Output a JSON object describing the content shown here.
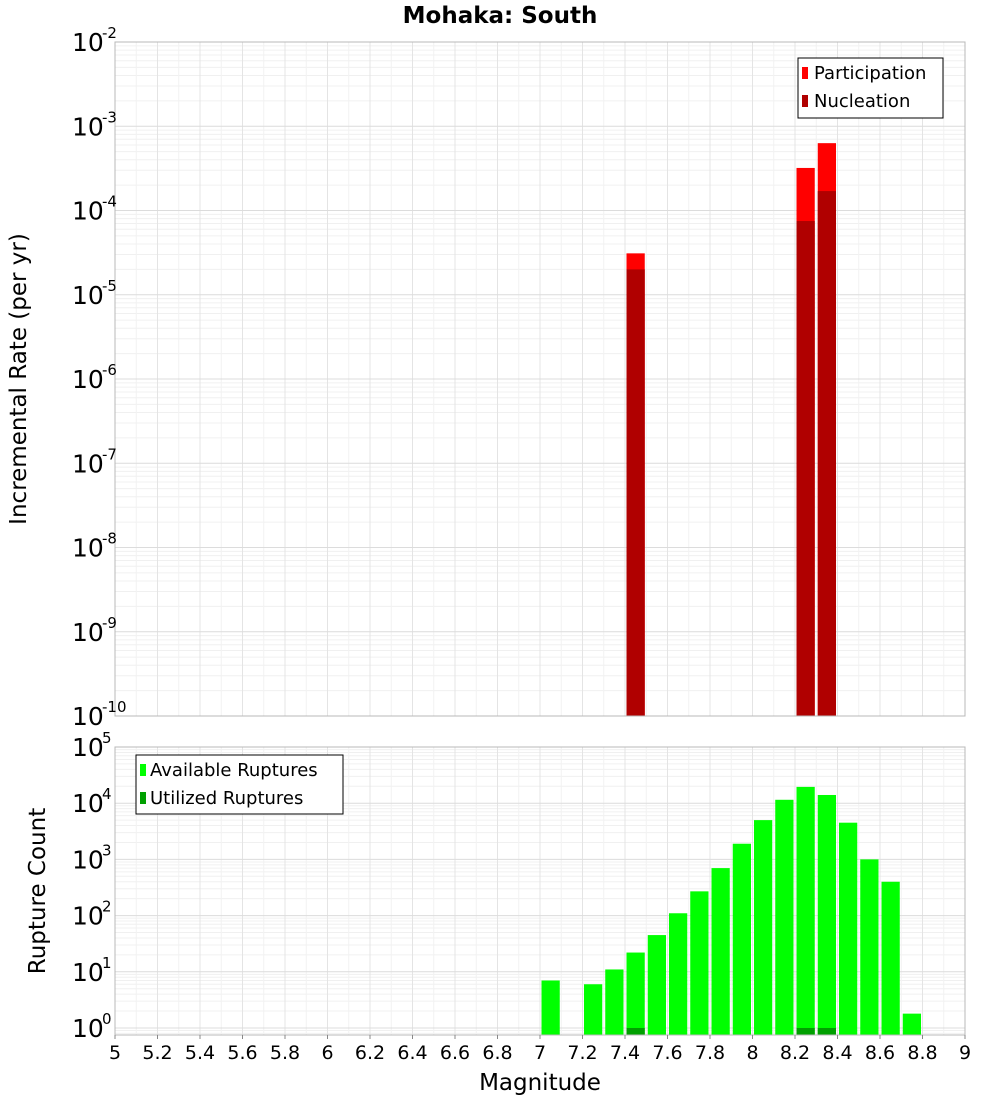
{
  "title": "Mohaka: South",
  "chart_data": [
    {
      "type": "bar",
      "panel": "top",
      "ylabel": "Incremental Rate (per yr)",
      "yscale": "log",
      "ylim": [
        1e-10,
        0.01
      ],
      "y_tick_exponents": [
        "-10",
        "-9",
        "-8",
        "-7",
        "-6",
        "-5",
        "-4",
        "-3",
        "-2"
      ],
      "legend": {
        "placement": "top-right",
        "entries": [
          "Participation",
          "Nucleation"
        ]
      },
      "series": [
        {
          "name": "Participation",
          "color": "#ff0000",
          "x": [
            7.45,
            8.25,
            8.35
          ],
          "values": [
            3.1e-05,
            0.00032,
            0.00063
          ]
        },
        {
          "name": "Nucleation",
          "color": "#b00000",
          "x": [
            7.45,
            8.25,
            8.35
          ],
          "values": [
            2e-05,
            7.5e-05,
            0.00017
          ]
        }
      ]
    },
    {
      "type": "bar",
      "panel": "bottom",
      "xlabel": "Magnitude",
      "ylabel": "Rupture Count",
      "yscale": "log",
      "ylim": [
        0.75,
        100000.0
      ],
      "xlim": [
        5,
        9
      ],
      "x_ticks": [
        "5",
        "5.2",
        "5.4",
        "5.6",
        "5.8",
        "6",
        "6.2",
        "6.4",
        "6.6",
        "6.8",
        "7",
        "7.2",
        "7.4",
        "7.6",
        "7.8",
        "8",
        "8.2",
        "8.4",
        "8.6",
        "8.8",
        "9"
      ],
      "y_tick_exponents": [
        "0",
        "1",
        "2",
        "3",
        "4",
        "5"
      ],
      "legend": {
        "placement": "top-left",
        "entries": [
          "Available Ruptures",
          "Utilized Ruptures"
        ]
      },
      "series": [
        {
          "name": "Available Ruptures",
          "color": "#00ff00",
          "x": [
            7.05,
            7.25,
            7.35,
            7.45,
            7.55,
            7.65,
            7.75,
            7.85,
            7.95,
            8.05,
            8.15,
            8.25,
            8.35,
            8.45,
            8.55,
            8.65,
            8.75
          ],
          "values": [
            7,
            6,
            11,
            22,
            45,
            110,
            270,
            700,
            1900,
            5000,
            11500,
            19500,
            14000,
            4500,
            1000,
            400,
            1.8
          ]
        },
        {
          "name": "Utilized Ruptures",
          "color": "#00a000",
          "x": [
            7.45,
            8.25,
            8.35
          ],
          "values": [
            1,
            1,
            1
          ]
        }
      ]
    }
  ]
}
